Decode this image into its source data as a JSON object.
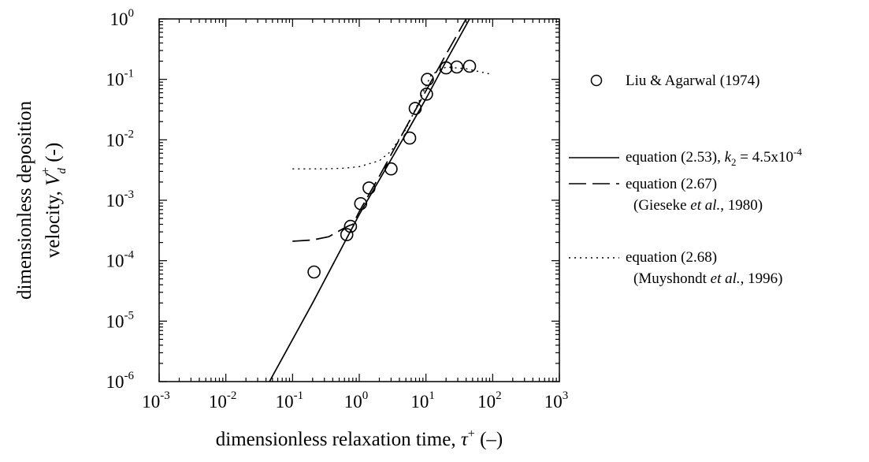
{
  "chart_data": {
    "type": "scatter",
    "xscale": "log",
    "yscale": "log",
    "xlim": [
      0.001,
      1000
    ],
    "ylim": [
      1e-06,
      1
    ],
    "grid": false,
    "legend_placement": "right",
    "xlabel": {
      "main": "dimensionless relaxation time, ",
      "symbol": "τ",
      "sup": "+",
      "unit": " (–)"
    },
    "ylabel": {
      "line1": "dimensionless deposition",
      "line2_main": "velocity, ",
      "symbol": "V",
      "sub": "d",
      "sup": "+",
      "unit": " (-)"
    },
    "x_ticks": [
      {
        "value": 0.001,
        "base": "10",
        "exp": "-3"
      },
      {
        "value": 0.01,
        "base": "10",
        "exp": "-2"
      },
      {
        "value": 0.1,
        "base": "10",
        "exp": "-1"
      },
      {
        "value": 1,
        "base": "10",
        "exp": "0"
      },
      {
        "value": 10,
        "base": "10",
        "exp": "1"
      },
      {
        "value": 100,
        "base": "10",
        "exp": "2"
      },
      {
        "value": 1000,
        "base": "10",
        "exp": "3"
      }
    ],
    "y_ticks": [
      {
        "value": 1e-06,
        "base": "10",
        "exp": "-6"
      },
      {
        "value": 1e-05,
        "base": "10",
        "exp": "-5"
      },
      {
        "value": 0.0001,
        "base": "10",
        "exp": "-4"
      },
      {
        "value": 0.001,
        "base": "10",
        "exp": "-3"
      },
      {
        "value": 0.01,
        "base": "10",
        "exp": "-2"
      },
      {
        "value": 0.1,
        "base": "10",
        "exp": "-1"
      },
      {
        "value": 1,
        "base": "10",
        "exp": "0"
      }
    ],
    "series": [
      {
        "name": "Liu & Agarwal (1974)",
        "kind": "markers",
        "points": [
          [
            0.21,
            6.5e-05
          ],
          [
            0.65,
            0.00027
          ],
          [
            0.74,
            0.00037
          ],
          [
            1.05,
            0.00088
          ],
          [
            1.4,
            0.0016
          ],
          [
            3.0,
            0.0033
          ],
          [
            5.7,
            0.0107
          ],
          [
            6.9,
            0.033
          ],
          [
            10.2,
            0.057
          ],
          [
            10.5,
            0.1
          ],
          [
            20,
            0.155
          ],
          [
            29,
            0.16
          ],
          [
            45,
            0.165
          ]
        ]
      },
      {
        "name": "equation (2.53), k2 = 4.5x10-4",
        "kind": "line",
        "dash": "solid",
        "points": [
          [
            0.045,
            1e-06
          ],
          [
            0.2,
            2e-05
          ],
          [
            1,
            0.00058
          ],
          [
            5,
            0.0125
          ],
          [
            10,
            0.048
          ],
          [
            20,
            0.2
          ],
          [
            45,
            1
          ]
        ]
      },
      {
        "name": "equation (2.67) (Gieseke et al., 1980)",
        "kind": "line",
        "dash": "long",
        "points": [
          [
            0.1,
            0.00021
          ],
          [
            0.2,
            0.00022
          ],
          [
            0.35,
            0.00025
          ],
          [
            0.55,
            0.00033
          ],
          [
            0.7,
            0.00038
          ],
          [
            0.8,
            0.0004
          ],
          [
            1,
            0.00065
          ],
          [
            2,
            0.0025
          ],
          [
            5,
            0.016
          ],
          [
            10,
            0.065
          ],
          [
            20,
            0.26
          ],
          [
            40,
            1
          ]
        ]
      },
      {
        "name": "equation (2.68) (Muyshondt et al., 1996)",
        "kind": "line",
        "dash": "dotted",
        "points": [
          [
            0.1,
            0.0033
          ],
          [
            0.3,
            0.0033
          ],
          [
            0.6,
            0.0034
          ],
          [
            1,
            0.0036
          ],
          [
            2,
            0.0045
          ],
          [
            3,
            0.0065
          ],
          [
            5,
            0.015
          ],
          [
            8,
            0.045
          ],
          [
            12,
            0.12
          ],
          [
            20,
            0.16
          ],
          [
            40,
            0.15
          ],
          [
            100,
            0.12
          ]
        ]
      }
    ],
    "legend": [
      {
        "kind": "circle",
        "text": "Liu & Agarwal (1974)"
      },
      {
        "kind": "solid",
        "text_main": "equation (2.53), ",
        "text_sym": "k",
        "text_sub": "2",
        "text_eq": " = 4.5x10",
        "text_sup": "-4"
      },
      {
        "kind": "long",
        "line1": "equation (2.67)",
        "line2_a": "(Gieseke ",
        "line2_i": "et al.",
        "line2_b": ", 1980)"
      },
      {
        "kind": "dotted",
        "line1": "equation (2.68)",
        "line2_a": "(Muyshondt ",
        "line2_i": "et al.",
        "line2_b": ", 1996)"
      }
    ]
  }
}
